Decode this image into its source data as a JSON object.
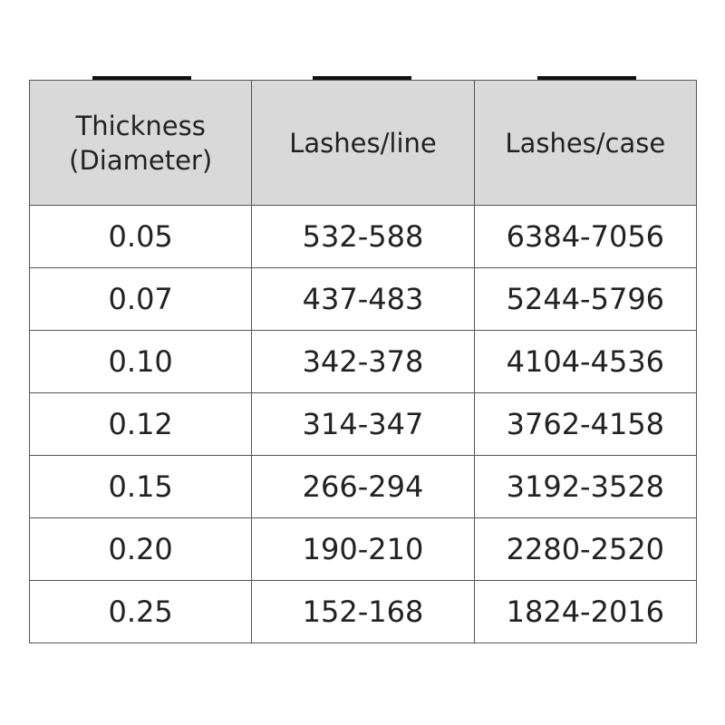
{
  "table": {
    "headers": [
      "Thickness (Diameter)",
      "Lashes/line",
      "Lashes/case"
    ],
    "rows": [
      [
        "0.05",
        "532-588",
        "6384-7056"
      ],
      [
        "0.07",
        "437-483",
        "5244-5796"
      ],
      [
        "0.10",
        "342-378",
        "4104-4536"
      ],
      [
        "0.12",
        "314-347",
        "3762-4158"
      ],
      [
        "0.15",
        "266-294",
        "3192-3528"
      ],
      [
        "0.20",
        "190-210",
        "2280-2520"
      ],
      [
        "0.25",
        "152-168",
        "1824-2016"
      ]
    ]
  }
}
